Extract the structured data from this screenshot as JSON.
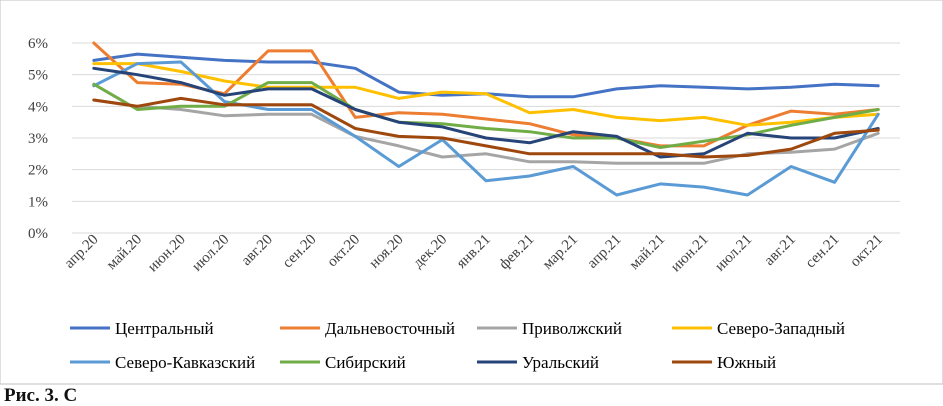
{
  "chart_data": {
    "type": "line",
    "title": "",
    "xlabel": "",
    "ylabel": "",
    "ylim": [
      0,
      6
    ],
    "yticks": [
      "0%",
      "1%",
      "2%",
      "3%",
      "4%",
      "5%",
      "6%"
    ],
    "grid": true,
    "legend_position": "bottom",
    "categories": [
      "апр.20",
      "май.20",
      "июн.20",
      "июл.20",
      "авг.20",
      "сен.20",
      "окт.20",
      "ноя.20",
      "дек.20",
      "янв.21",
      "фев.21",
      "мар.21",
      "апр.21",
      "май.21",
      "июн.21",
      "июл.21",
      "авг.21",
      "сен.21",
      "окт.21"
    ],
    "series": [
      {
        "name": "Центральный",
        "color": "#4472C4",
        "values": [
          5.45,
          5.65,
          5.55,
          5.45,
          5.4,
          5.4,
          5.2,
          4.45,
          4.35,
          4.4,
          4.3,
          4.3,
          4.55,
          4.65,
          4.6,
          4.55,
          4.6,
          4.7,
          4.65
        ]
      },
      {
        "name": "Дальневосточный",
        "color": "#ED7D31",
        "values": [
          6.0,
          4.75,
          4.7,
          4.4,
          5.75,
          5.75,
          3.65,
          3.8,
          3.75,
          3.6,
          3.45,
          3.1,
          3.0,
          2.75,
          2.75,
          3.4,
          3.85,
          3.75,
          3.9
        ]
      },
      {
        "name": "Приволжский",
        "color": "#A5A5A5",
        "values": [
          4.2,
          4.0,
          3.9,
          3.7,
          3.75,
          3.75,
          3.05,
          2.75,
          2.4,
          2.5,
          2.25,
          2.25,
          2.2,
          2.2,
          2.2,
          2.5,
          2.55,
          2.65,
          3.15
        ]
      },
      {
        "name": "Северо-Западный",
        "color": "#FFC000",
        "values": [
          5.35,
          5.35,
          5.1,
          4.8,
          4.6,
          4.6,
          4.6,
          4.25,
          4.45,
          4.4,
          3.8,
          3.9,
          3.65,
          3.55,
          3.65,
          3.4,
          3.5,
          3.65,
          3.75
        ]
      },
      {
        "name": "Северо-Кавказский",
        "color": "#5B9BD5",
        "values": [
          4.65,
          5.35,
          5.4,
          4.15,
          3.9,
          3.9,
          3.05,
          2.1,
          2.95,
          1.65,
          1.8,
          2.1,
          1.2,
          1.55,
          1.45,
          1.2,
          2.1,
          1.6,
          3.75
        ]
      },
      {
        "name": "Сибирский",
        "color": "#70AD47",
        "values": [
          4.7,
          3.9,
          4.0,
          4.0,
          4.75,
          4.75,
          3.9,
          3.5,
          3.45,
          3.3,
          3.2,
          3.0,
          3.0,
          2.7,
          2.9,
          3.1,
          3.4,
          3.65,
          3.9
        ]
      },
      {
        "name": "Уральский",
        "color": "#264478",
        "values": [
          5.2,
          5.0,
          4.75,
          4.35,
          4.55,
          4.55,
          3.9,
          3.5,
          3.35,
          3.0,
          2.85,
          3.2,
          3.05,
          2.4,
          2.5,
          3.15,
          3.0,
          3.0,
          3.3
        ]
      },
      {
        "name": "Южный",
        "color": "#9E480E",
        "values": [
          4.2,
          4.0,
          4.25,
          4.05,
          4.05,
          4.05,
          3.3,
          3.05,
          3.0,
          2.75,
          2.5,
          2.5,
          2.5,
          2.5,
          2.4,
          2.45,
          2.65,
          3.15,
          3.25
        ]
      }
    ]
  },
  "caption": "Рис. 3. С"
}
